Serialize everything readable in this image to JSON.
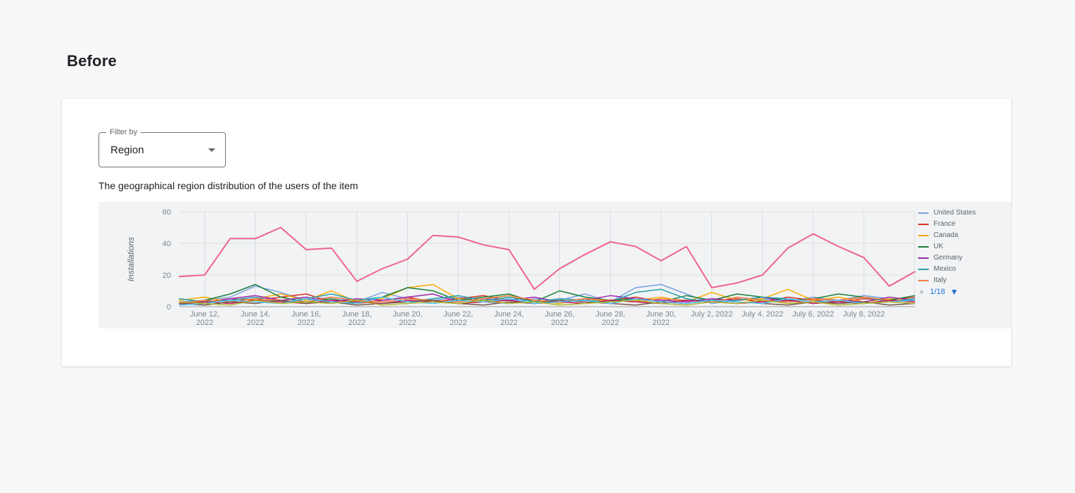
{
  "page": {
    "heading": "Before"
  },
  "filter": {
    "label": "Filter by",
    "value": "Region"
  },
  "description": "The geographical region distribution of the users of the item",
  "legend": {
    "items": [
      {
        "label": "United States",
        "color": "#7b9fe0"
      },
      {
        "label": "France",
        "color": "#d93025"
      },
      {
        "label": "Canada",
        "color": "#f9ab00"
      },
      {
        "label": "UK",
        "color": "#188038"
      },
      {
        "label": "Germany",
        "color": "#9c27b0"
      },
      {
        "label": "Mexico",
        "color": "#26a2ac"
      },
      {
        "label": "Italy",
        "color": "#f57c3f"
      }
    ],
    "pagination": "1/18",
    "page_up_icon": "▲",
    "page_down_icon": "▼"
  },
  "chart_data": {
    "type": "line",
    "title": "",
    "xlabel": "",
    "ylabel": "Installations",
    "ylim": [
      0,
      60
    ],
    "yticks": [
      0,
      20,
      40,
      60
    ],
    "grid": true,
    "legend_position": "right",
    "x_tick_indices": [
      1,
      3,
      5,
      7,
      9,
      11,
      13,
      15,
      17,
      19,
      21,
      23,
      25,
      27
    ],
    "x_tick_labels": [
      "June 12,\n2022",
      "June 14,\n2022",
      "June 16,\n2022",
      "June 18,\n2022",
      "June 20,\n2022",
      "June 22,\n2022",
      "June 24,\n2022",
      "June 26,\n2022",
      "June 28,\n2022",
      "June 30,\n2022",
      "July 2, 2022",
      "July 4, 2022",
      "July 6, 2022",
      "July 8, 2022"
    ],
    "series": [
      {
        "name": "United States",
        "color": "#7b9fe0",
        "values": [
          3,
          4,
          6,
          13,
          9,
          4,
          6,
          3,
          9,
          5,
          4,
          6,
          3,
          2,
          5,
          4,
          8,
          3,
          12,
          14,
          8,
          2,
          4,
          5,
          3,
          6,
          4,
          7,
          5,
          4
        ]
      },
      {
        "name": "France",
        "color": "#d93025",
        "values": [
          2,
          3,
          5,
          4,
          6,
          8,
          3,
          2,
          4,
          6,
          3,
          5,
          7,
          4,
          2,
          3,
          5,
          4,
          6,
          3,
          2,
          4,
          5,
          3,
          6,
          4,
          3,
          5,
          4,
          6
        ]
      },
      {
        "name": "Canada",
        "color": "#f9ab00",
        "values": [
          4,
          6,
          3,
          5,
          8,
          4,
          10,
          3,
          5,
          12,
          14,
          5,
          3,
          6,
          4,
          2,
          5,
          3,
          4,
          6,
          3,
          9,
          4,
          5,
          11,
          4,
          6,
          3,
          5,
          4
        ]
      },
      {
        "name": "UK",
        "color": "#188038",
        "values": [
          2,
          4,
          8,
          14,
          6,
          3,
          5,
          2,
          6,
          12,
          10,
          4,
          6,
          8,
          3,
          10,
          6,
          4,
          5,
          3,
          7,
          4,
          8,
          6,
          4,
          5,
          8,
          6,
          4,
          7
        ]
      },
      {
        "name": "Germany",
        "color": "#9c27b0",
        "values": [
          3,
          2,
          5,
          7,
          4,
          6,
          3,
          5,
          4,
          6,
          8,
          3,
          5,
          4,
          6,
          3,
          4,
          7,
          5,
          4,
          3,
          5,
          4,
          6,
          3,
          5,
          4,
          3,
          6,
          4
        ]
      },
      {
        "name": "Mexico",
        "color": "#26a2ac",
        "values": [
          5,
          3,
          4,
          6,
          3,
          5,
          8,
          4,
          6,
          3,
          5,
          7,
          4,
          6,
          3,
          5,
          4,
          3,
          9,
          11,
          5,
          3,
          4,
          6,
          5,
          3,
          4,
          6,
          3,
          5
        ]
      },
      {
        "name": "Italy",
        "color": "#f57c3f",
        "values": [
          2,
          4,
          3,
          5,
          4,
          3,
          6,
          4,
          3,
          5,
          4,
          3,
          5,
          7,
          4,
          3,
          5,
          4,
          3,
          5,
          4,
          3,
          6,
          4,
          3,
          5,
          4,
          6,
          4,
          3
        ]
      },
      {
        "name": "",
        "color": "#c2185b",
        "values": [
          1,
          3,
          2,
          4,
          3,
          2,
          4,
          3,
          2,
          4,
          3,
          2,
          3,
          4,
          2,
          3,
          2,
          4,
          3,
          2,
          4,
          3,
          2,
          3,
          4,
          2,
          3,
          2,
          4,
          3
        ]
      },
      {
        "name": "",
        "color": "#795548",
        "values": [
          2,
          1,
          3,
          2,
          4,
          2,
          3,
          1,
          2,
          3,
          4,
          2,
          1,
          3,
          2,
          4,
          3,
          2,
          1,
          3,
          2,
          4,
          3,
          2,
          1,
          3,
          2,
          3,
          1,
          2
        ]
      },
      {
        "name": "",
        "color": "#4fc3f7",
        "values": [
          1,
          2,
          4,
          3,
          2,
          5,
          3,
          2,
          6,
          3,
          2,
          4,
          3,
          5,
          2,
          3,
          4,
          2,
          5,
          3,
          2,
          4,
          3,
          2,
          5,
          3,
          4,
          2,
          3,
          4
        ]
      },
      {
        "name": "",
        "color": "#afb42b",
        "values": [
          3,
          2,
          1,
          4,
          2,
          3,
          2,
          4,
          1,
          2,
          3,
          2,
          4,
          2,
          3,
          1,
          2,
          3,
          4,
          2,
          1,
          3,
          2,
          4,
          2,
          3,
          1,
          2,
          3,
          2
        ]
      },
      {
        "name": "",
        "color": "#f06292",
        "emphasis": true,
        "values": [
          19,
          20,
          43,
          43,
          50,
          36,
          37,
          16,
          24,
          30,
          45,
          44,
          39,
          36,
          11,
          24,
          33,
          41,
          38,
          29,
          38,
          12,
          15,
          20,
          37,
          46,
          38,
          31,
          13,
          22
        ]
      }
    ]
  }
}
